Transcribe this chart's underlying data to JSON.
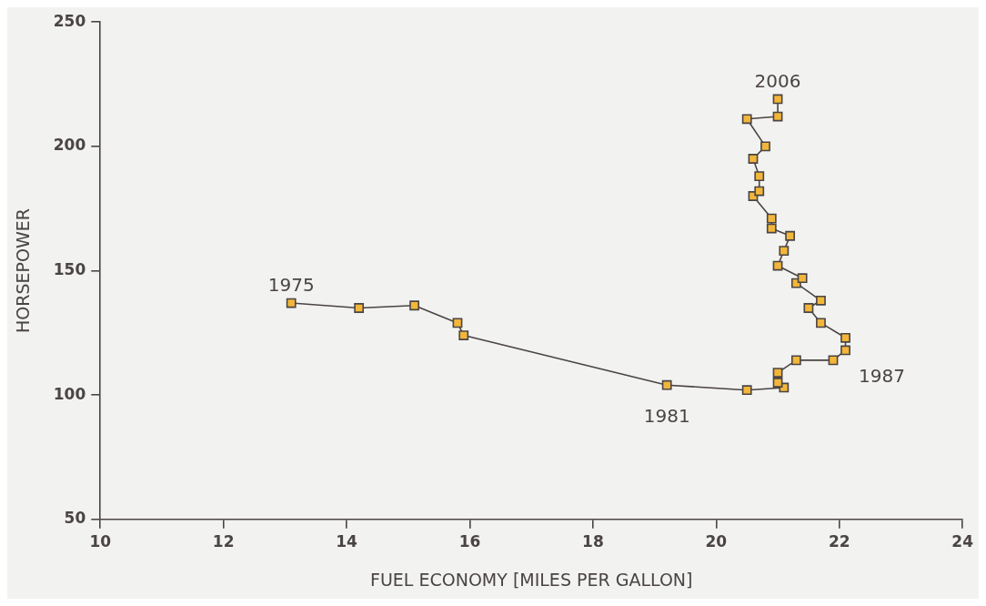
{
  "chart_data": {
    "type": "line",
    "xlabel": "FUEL ECONOMY [MILES PER GALLON]",
    "ylabel": "HORSEPOWER",
    "xlim": [
      10,
      24
    ],
    "xticks": [
      10,
      12,
      14,
      16,
      18,
      20,
      22,
      24
    ],
    "ylim": [
      50,
      250
    ],
    "yticks": [
      50,
      100,
      150,
      200,
      250
    ],
    "grid": false,
    "legend": false,
    "marker": "square",
    "line_style": "solid",
    "x": [
      13.1,
      14.2,
      15.1,
      15.8,
      15.9,
      19.2,
      20.5,
      21.1,
      21.0,
      21.0,
      21.3,
      21.9,
      22.1,
      22.1,
      21.7,
      21.5,
      21.7,
      21.3,
      21.4,
      21.0,
      21.1,
      21.2,
      20.9,
      20.9,
      20.6,
      20.7,
      20.7,
      20.6,
      20.8,
      20.5,
      21.0,
      21.0
    ],
    "series": [
      {
        "color": "#f2b63a",
        "values": [
          137,
          135,
          136,
          129,
          124,
          104,
          102,
          103,
          105,
          109,
          114,
          114,
          118,
          123,
          129,
          135,
          138,
          145,
          147,
          152,
          158,
          164,
          167,
          171,
          180,
          182,
          188,
          195,
          200,
          211,
          212,
          219
        ]
      }
    ],
    "annotations": [
      {
        "text": "1975",
        "x": 13.1,
        "y": 137
      },
      {
        "text": "1981",
        "x": 19.2,
        "y": 104
      },
      {
        "text": "1987",
        "x": 22.1,
        "y": 118
      },
      {
        "text": "2006",
        "x": 21.0,
        "y": 219
      }
    ]
  }
}
